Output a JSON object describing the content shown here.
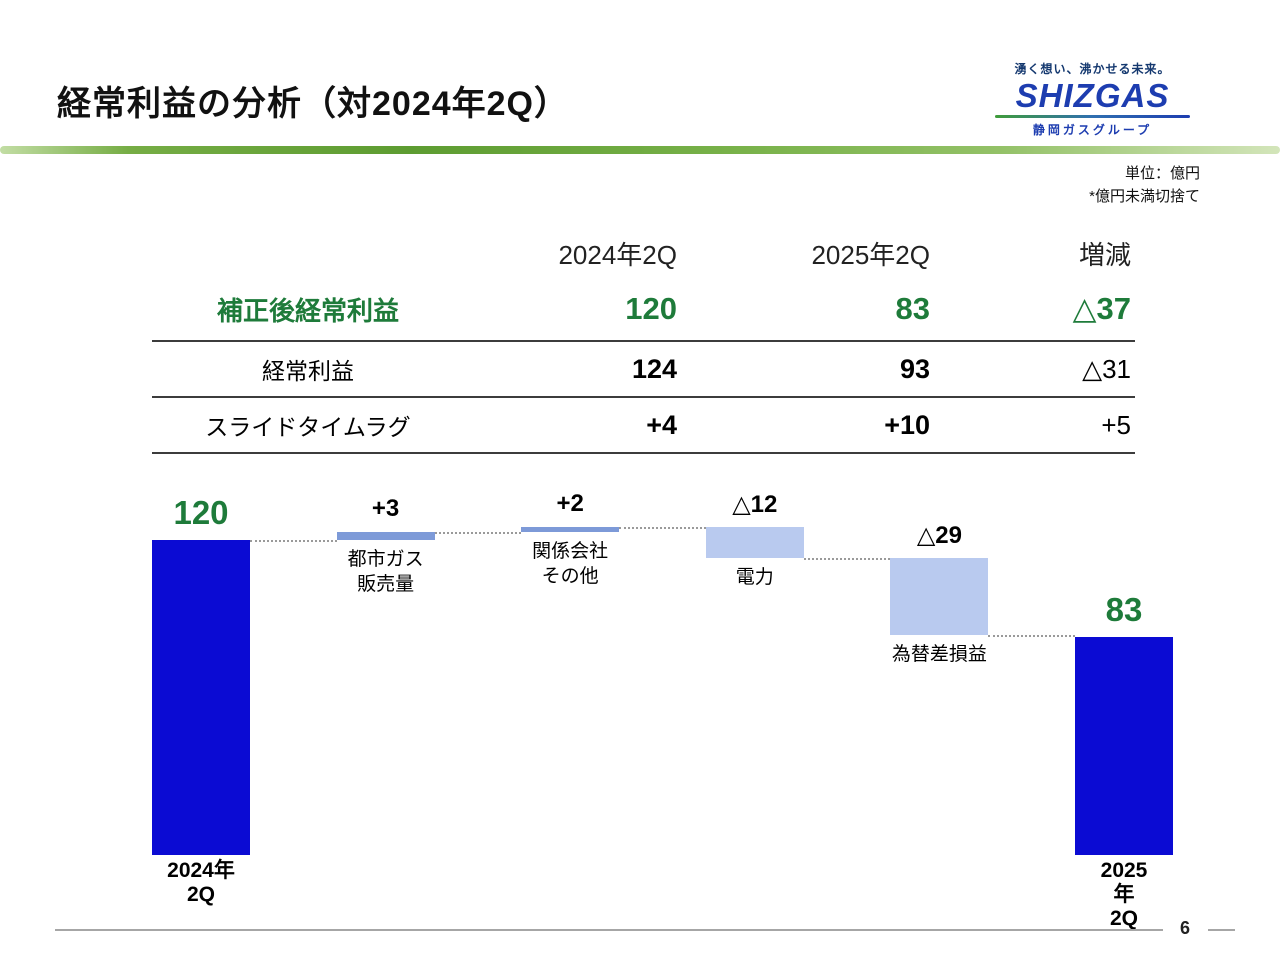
{
  "slide": {
    "title": "経常利益の分析（対2024年2Q）",
    "page_number": "6"
  },
  "logo": {
    "tagline": "湧く想い、沸かせる未来。",
    "name": "SHIZGAS",
    "subtitle": "静岡ガスグループ"
  },
  "notes": {
    "unit": "単位：億円",
    "rounding": "*億円未満切捨て"
  },
  "table": {
    "headers": [
      "2024年2Q",
      "2025年2Q",
      "増減"
    ],
    "rows": [
      {
        "label": "補正後経常利益",
        "values": [
          "120",
          "83",
          "△37"
        ],
        "highlight": true
      },
      {
        "label": "経常利益",
        "values": [
          "124",
          "93",
          "△31"
        ],
        "highlight": false
      },
      {
        "label": "スライドタイムラグ",
        "values": [
          "+4",
          "+10",
          "+5"
        ],
        "highlight": false
      }
    ]
  },
  "chart_data": {
    "type": "waterfall",
    "unit": "億円",
    "ylim": [
      0,
      142
    ],
    "start": {
      "label": "2024年\n2Q",
      "value": 120,
      "display": "120"
    },
    "steps": [
      {
        "name": "都市ガス\n販売量",
        "delta": 3,
        "display": "+3"
      },
      {
        "name": "関係会社\nその他",
        "delta": 2,
        "display": "+2"
      },
      {
        "name": "電力",
        "delta": -12,
        "display": "△12"
      },
      {
        "name": "為替差損益",
        "delta": -29,
        "display": "△29"
      }
    ],
    "end": {
      "label": "2025年\n2Q",
      "value": 83,
      "display": "83"
    },
    "colors": {
      "main_bar": "#0b0bd3",
      "increase_bar": "#7d9ad8",
      "decrease_bar": "#b9caef",
      "value_text": "#1e7b3a"
    }
  },
  "colors": {
    "accent_green": "#1e7b3a",
    "divider_green": "#5d9c31",
    "logo_blue": "#1d3db0"
  }
}
